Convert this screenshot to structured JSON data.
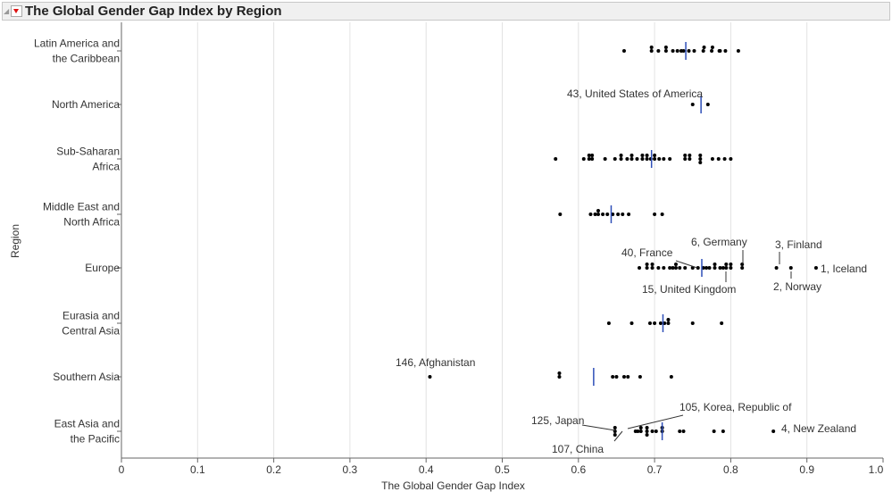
{
  "chart_data": {
    "type": "scatter",
    "title": "The Global Gender Gap Index by Region",
    "xlabel": "The Global Gender Gap Index",
    "ylabel": "Region",
    "xlim": [
      0,
      1.0
    ],
    "xticks": [
      "0",
      "0.1",
      "0.2",
      "0.3",
      "0.4",
      "0.5",
      "0.6",
      "0.7",
      "0.8",
      "0.9",
      "1.0"
    ],
    "grid": true,
    "mean_color": "#2e4fb8",
    "regions": [
      {
        "name": [
          "Latin America and",
          "the Caribbean"
        ],
        "mean": 0.741,
        "values": [
          0.66,
          0.696,
          0.696,
          0.705,
          0.715,
          0.715,
          0.724,
          0.73,
          0.735,
          0.738,
          0.745,
          0.752,
          0.764,
          0.765,
          0.775,
          0.776,
          0.785,
          0.786,
          0.793,
          0.81
        ]
      },
      {
        "name": [
          "North America"
        ],
        "mean": 0.761,
        "values": [
          0.75,
          0.77
        ]
      },
      {
        "name": [
          "Sub-Saharan",
          "Africa"
        ],
        "mean": 0.696,
        "values": [
          0.57,
          0.607,
          0.614,
          0.614,
          0.618,
          0.618,
          0.635,
          0.648,
          0.656,
          0.656,
          0.664,
          0.67,
          0.67,
          0.677,
          0.684,
          0.684,
          0.69,
          0.69,
          0.695,
          0.7,
          0.7,
          0.706,
          0.712,
          0.72,
          0.74,
          0.74,
          0.746,
          0.746,
          0.76,
          0.76,
          0.76,
          0.776,
          0.784,
          0.792,
          0.8
        ]
      },
      {
        "name": [
          "Middle East and",
          "North Africa"
        ],
        "mean": 0.643,
        "values": [
          0.576,
          0.616,
          0.622,
          0.626,
          0.626,
          0.632,
          0.638,
          0.645,
          0.652,
          0.658,
          0.666,
          0.7,
          0.71
        ]
      },
      {
        "name": [
          "Europe"
        ],
        "mean": 0.762,
        "values": [
          0.68,
          0.69,
          0.69,
          0.697,
          0.697,
          0.705,
          0.712,
          0.72,
          0.724,
          0.728,
          0.728,
          0.733,
          0.74,
          0.75,
          0.757,
          0.764,
          0.768,
          0.772,
          0.779,
          0.779,
          0.786,
          0.79,
          0.794,
          0.794,
          0.8,
          0.8,
          0.815,
          0.815,
          0.86,
          0.879,
          0.912
        ]
      },
      {
        "name": [
          "Eurasia and",
          "Central Asia"
        ],
        "mean": 0.711,
        "values": [
          0.64,
          0.67,
          0.694,
          0.7,
          0.708,
          0.713,
          0.718,
          0.718,
          0.75,
          0.788
        ]
      },
      {
        "name": [
          "Southern Asia"
        ],
        "mean": 0.62,
        "values": [
          0.405,
          0.575,
          0.575,
          0.645,
          0.65,
          0.66,
          0.665,
          0.681,
          0.722
        ]
      },
      {
        "name": [
          "East Asia and",
          "the Pacific"
        ],
        "mean": 0.71,
        "values": [
          0.648,
          0.648,
          0.648,
          0.675,
          0.678,
          0.682,
          0.682,
          0.69,
          0.69,
          0.69,
          0.697,
          0.702,
          0.71,
          0.71,
          0.733,
          0.738,
          0.778,
          0.79,
          0.856
        ]
      }
    ],
    "annotations": [
      {
        "label": "43, United States of America",
        "region": 1,
        "value": 0.75
      },
      {
        "label": "1, Iceland",
        "region": 4,
        "value": 0.912
      },
      {
        "label": "2, Norway",
        "region": 4,
        "value": 0.879
      },
      {
        "label": "3, Finland",
        "region": 4,
        "value": 0.86
      },
      {
        "label": "6, Germany",
        "region": 4,
        "value": 0.815
      },
      {
        "label": "40, France",
        "region": 4,
        "value": 0.756
      },
      {
        "label": "15, United Kingdom",
        "region": 4,
        "value": 0.79
      },
      {
        "label": "146, Afghanistan",
        "region": 6,
        "value": 0.405
      },
      {
        "label": "125, Japan",
        "region": 7,
        "value": 0.648
      },
      {
        "label": "105, Korea, Republic of",
        "region": 7,
        "value": 0.69
      },
      {
        "label": "107, China",
        "region": 7,
        "value": 0.682
      },
      {
        "label": "4, New Zealand",
        "region": 7,
        "value": 0.856
      }
    ]
  }
}
